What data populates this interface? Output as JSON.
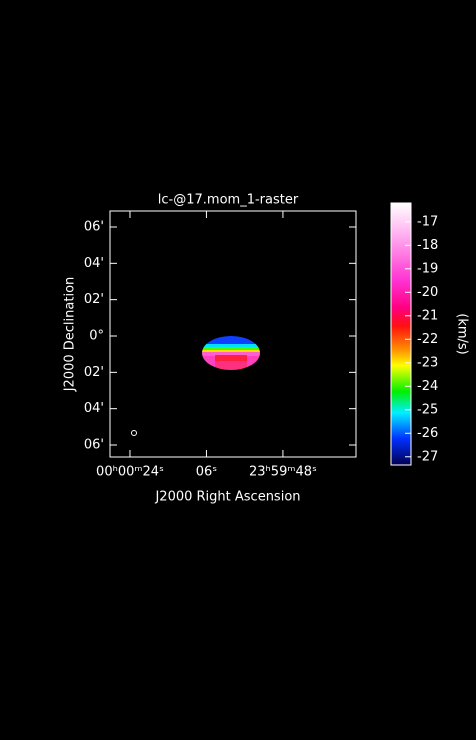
{
  "chart_data": {
    "type": "raster",
    "title": "lc-@17.mom_1-raster",
    "x_label": "J2000 Right Ascension",
    "y_label": "J2000 Declination",
    "xlim": [
      28.7,
      -29.2
    ],
    "xticks": [
      {
        "value": 24,
        "label": "00ʰ00ᵐ24ˢ"
      },
      {
        "value": 6,
        "label": "06ˢ"
      },
      {
        "value": -12,
        "label": "23ʰ59ᵐ48ˢ"
      }
    ],
    "ylim": [
      -6.66,
      6.88
    ],
    "yticks": [
      {
        "value": 6,
        "label": "06'"
      },
      {
        "value": 4,
        "label": "04'"
      },
      {
        "value": 2,
        "label": "02'"
      },
      {
        "value": 0,
        "label": "0°"
      },
      {
        "value": -2,
        "label": "02'"
      },
      {
        "value": -4,
        "label": "04'"
      },
      {
        "value": -6,
        "label": "06'"
      }
    ],
    "colorbar": {
      "label": "(km/s)",
      "lim": [
        -27.35,
        -16.2
      ],
      "ticks": [
        -17,
        -18,
        -19,
        -20,
        -21,
        -22,
        -23,
        -24,
        -25,
        -26,
        -27
      ]
    }
  }
}
